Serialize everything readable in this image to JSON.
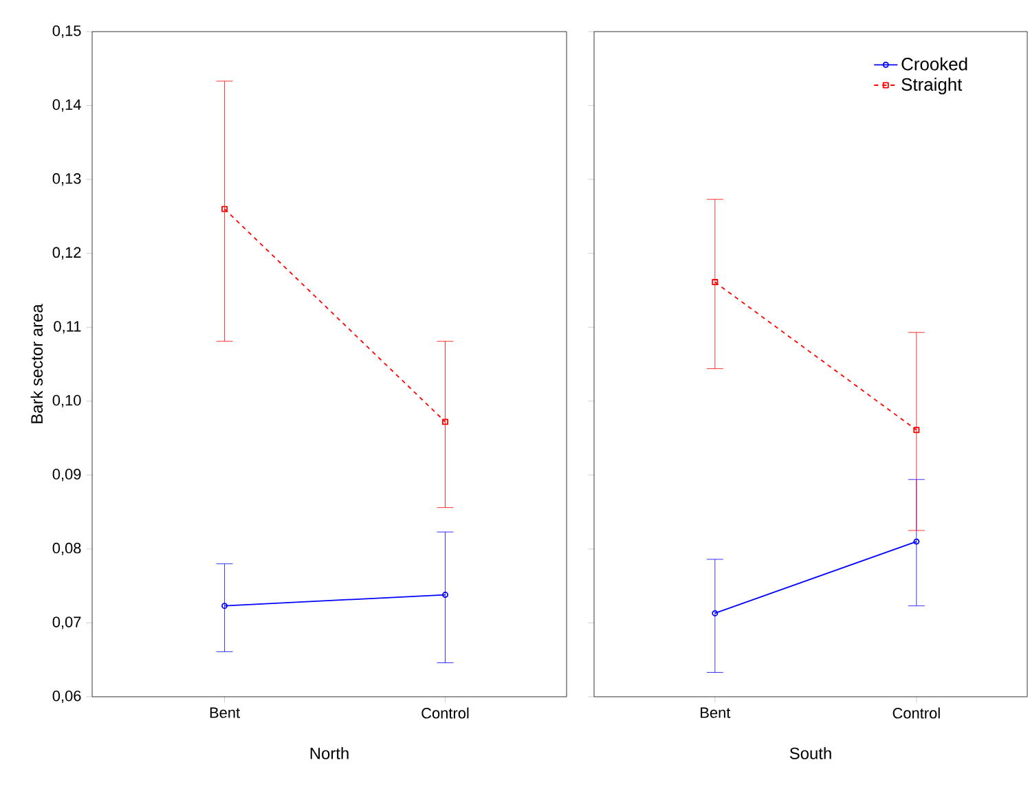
{
  "chart_data": [
    {
      "type": "line",
      "xlabel": "North",
      "ylabel": "Bark sector area",
      "categories": [
        "Bent",
        "Control"
      ],
      "ylim": [
        0.06,
        0.15
      ],
      "yticks": [
        {
          "value": 0.06,
          "label": "0,06"
        },
        {
          "value": 0.07,
          "label": "0,07"
        },
        {
          "value": 0.08,
          "label": "0,08"
        },
        {
          "value": 0.09,
          "label": "0,09"
        },
        {
          "value": 0.1,
          "label": "0,10"
        },
        {
          "value": 0.11,
          "label": "0,11"
        },
        {
          "value": 0.12,
          "label": "0,12"
        },
        {
          "value": 0.13,
          "label": "0,13"
        },
        {
          "value": 0.14,
          "label": "0,14"
        },
        {
          "value": 0.15,
          "label": "0,15"
        }
      ],
      "series": [
        {
          "color": "#0000ff",
          "marker": "circle",
          "line_style": "solid",
          "values": [
            0.0723,
            0.0738
          ],
          "errors": [
            [
              0.0661,
              0.078
            ],
            [
              0.0646,
              0.0823
            ]
          ]
        },
        {
          "color": "#ff0000",
          "marker": "square",
          "line_style": "dashed",
          "values": [
            0.126,
            0.0972
          ],
          "errors": [
            [
              0.1081,
              0.1433
            ],
            [
              0.0856,
              0.1081
            ]
          ]
        }
      ]
    },
    {
      "type": "line",
      "xlabel": "South",
      "categories": [
        "Bent",
        "Control"
      ],
      "tick_labels": "x",
      "legend": "top right",
      "ylim": [
        0.06,
        0.15
      ],
      "yticks": [
        {
          "value": 0.06,
          "label": null
        },
        {
          "value": 0.07,
          "label": null
        },
        {
          "value": 0.08,
          "label": null
        },
        {
          "value": 0.09,
          "label": null
        },
        {
          "value": 0.1,
          "label": null
        },
        {
          "value": 0.11,
          "label": null
        },
        {
          "value": 0.12,
          "label": null
        },
        {
          "value": 0.13,
          "label": null
        },
        {
          "value": 0.14,
          "label": null
        },
        {
          "value": 0.15,
          "label": null
        }
      ],
      "series": [
        {
          "name": "Crooked",
          "color": "#0000ff",
          "marker": "circle",
          "line_style": "solid",
          "values": [
            0.0713,
            0.081
          ],
          "errors": [
            [
              0.0633,
              0.0786
            ],
            [
              0.0723,
              0.0894
            ]
          ]
        },
        {
          "name": "Straight",
          "color": "#ff0000",
          "marker": "square",
          "line_style": "dashed",
          "values": [
            0.1161,
            0.0961
          ],
          "errors": [
            [
              0.1044,
              0.1273
            ],
            [
              0.0825,
              0.1093
            ]
          ]
        }
      ]
    }
  ]
}
